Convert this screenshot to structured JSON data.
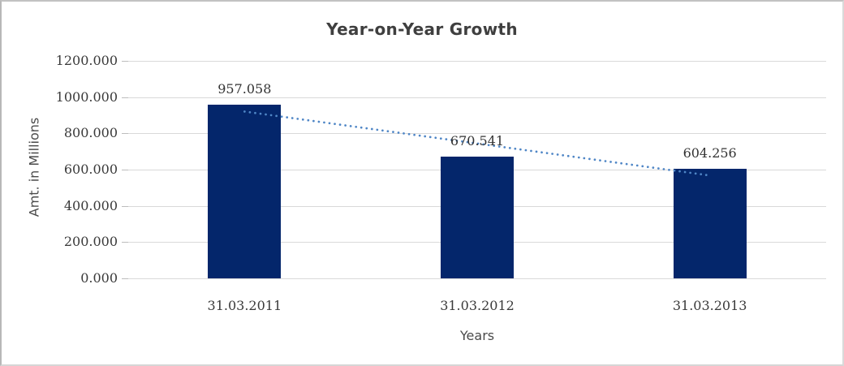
{
  "chart_data": {
    "type": "bar",
    "title": "Year-on-Year Growth",
    "xlabel": "Years",
    "ylabel": "Amt. in Millions",
    "categories": [
      "31.03.2011",
      "31.03.2012",
      "31.03.2013"
    ],
    "values": [
      957.058,
      670.541,
      604.256
    ],
    "data_labels": [
      "957.058",
      "670.541",
      "604.256"
    ],
    "y_axis": {
      "range": [
        0,
        1200
      ],
      "tick_values": [
        1200,
        1000,
        800,
        600,
        400,
        200,
        0
      ],
      "tick_labels": [
        "1200.000",
        "1000.000",
        "800.000",
        "600.000",
        "400.000",
        "200.000",
        "0.000"
      ]
    },
    "grid": true,
    "legend": false,
    "trendline": {
      "type": "linear",
      "style": "dotted",
      "fit_endpoint_values": [
        920.4,
        567.6
      ]
    },
    "colors": {
      "bar": "#04266b",
      "trendline": "#4f86c6",
      "gridline": "#d9d9d9",
      "tickmark": "#bdbdbd",
      "title_text": "#3f3f3f",
      "axis_text": "#3a3a3a"
    }
  }
}
